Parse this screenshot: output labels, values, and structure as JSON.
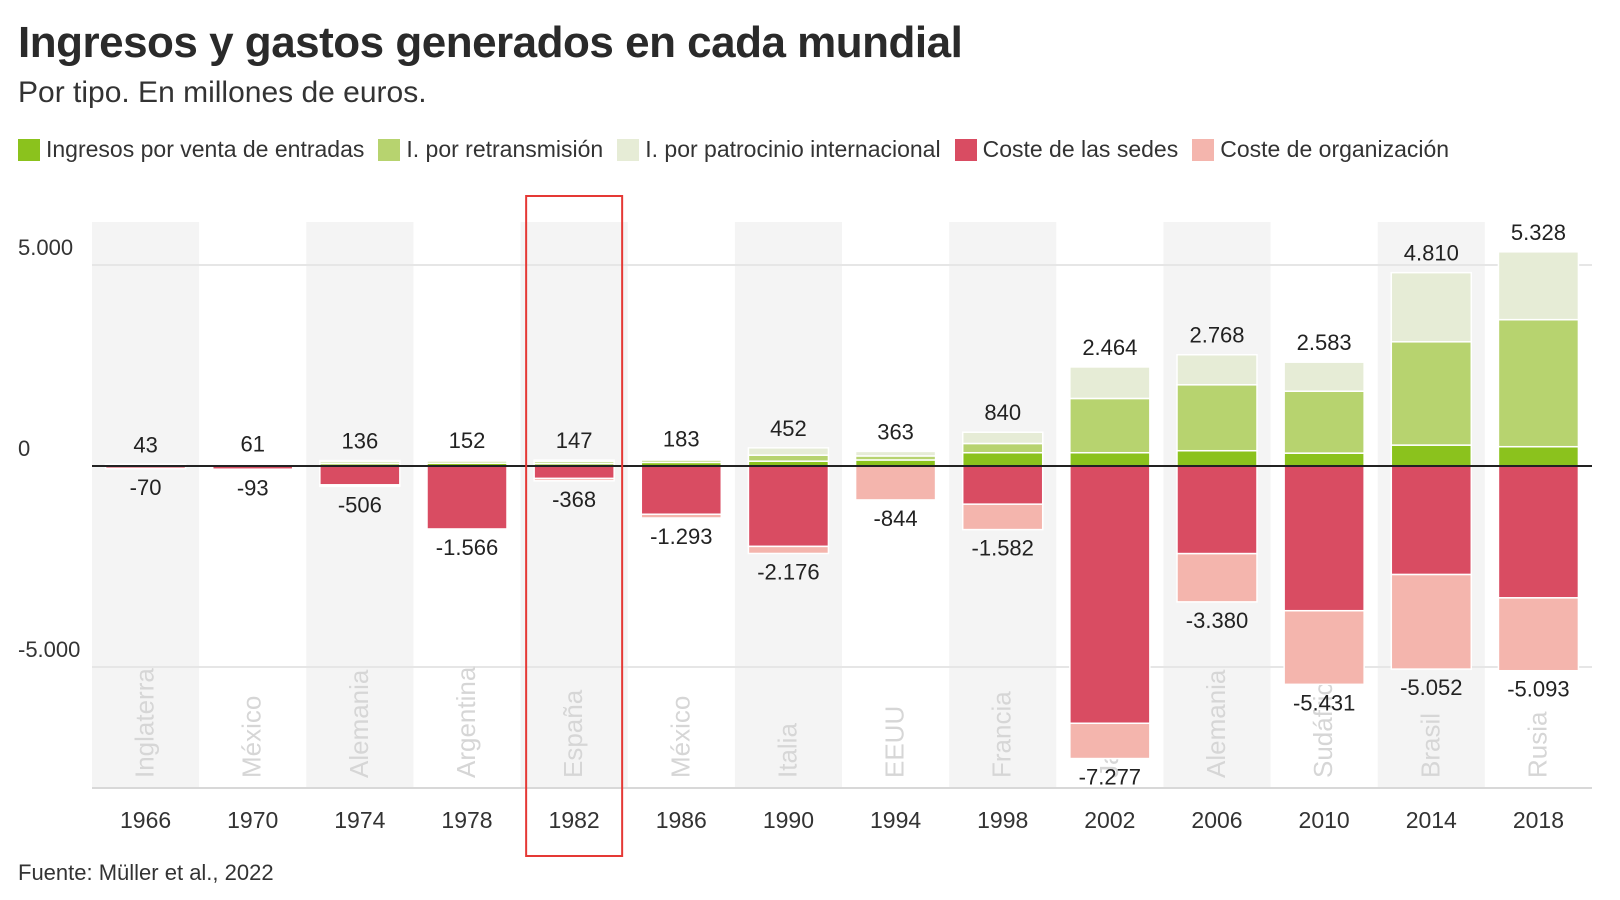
{
  "header": {
    "title": "Ingresos y gastos generados en cada mundial",
    "subtitle": "Por tipo. En millones de euros."
  },
  "footer": {
    "source": "Fuente: Müller et al., 2022"
  },
  "colors": {
    "ticket": "#8bc21d",
    "broadcast": "#b7d36f",
    "sponsorship": "#e6ecd6",
    "venues": "#d94c62",
    "organization": "#f4b5ad",
    "stripe": "#f4f4f4",
    "highlight": "#e53935"
  },
  "chart_data": {
    "type": "bar",
    "stacked": true,
    "categories": [
      "1966",
      "1970",
      "1974",
      "1978",
      "1982",
      "1986",
      "1990",
      "1994",
      "1998",
      "2002",
      "2006",
      "2010",
      "2014",
      "2018"
    ],
    "hosts": [
      "Inglaterra",
      "México",
      "Alemania",
      "Argentina",
      "España",
      "México",
      "Italia",
      "EEUU",
      "Francia",
      "Japón",
      "Alemania",
      "Sudáfrica",
      "Brasil",
      "Rusia"
    ],
    "series": [
      {
        "name": "Ingresos por venta de entradas",
        "key": "ticket",
        "values": [
          20,
          30,
          60,
          70,
          60,
          90,
          120,
          150,
          330,
          330,
          380,
          320,
          520,
          480
        ]
      },
      {
        "name": "I. por retransmisión",
        "key": "broadcast",
        "values": [
          15,
          20,
          50,
          55,
          55,
          60,
          150,
          100,
          230,
          1350,
          1640,
          1540,
          2570,
          3160
        ]
      },
      {
        "name": "I. por patrocinio internacional",
        "key": "sponsorship",
        "values": [
          8,
          11,
          26,
          27,
          32,
          33,
          182,
          113,
          280,
          784,
          748,
          723,
          1720,
          1688
        ]
      },
      {
        "name": "Coste de las sedes",
        "key": "venues",
        "values": [
          -60,
          -80,
          -470,
          -1566,
          -310,
          -1200,
          -2000,
          0,
          -950,
          -6400,
          -2180,
          -3600,
          -2700,
          -3280
        ]
      },
      {
        "name": "Coste de organización",
        "key": "organization",
        "values": [
          -10,
          -13,
          -36,
          0,
          -58,
          -93,
          -176,
          -844,
          -632,
          -877,
          -1200,
          -1831,
          -2352,
          -1813
        ]
      }
    ],
    "totals_positive": [
      43,
      61,
      136,
      152,
      147,
      183,
      452,
      363,
      840,
      2464,
      2768,
      2583,
      4810,
      5328
    ],
    "totals_negative": [
      -70,
      -93,
      -506,
      -1566,
      -368,
      -1293,
      -2176,
      -844,
      -1582,
      -7277,
      -3380,
      -5431,
      -5052,
      -5093
    ],
    "totals_positive_labels": [
      "43",
      "61",
      "136",
      "152",
      "147",
      "183",
      "452",
      "363",
      "840",
      "2.464",
      "2.768",
      "2.583",
      "4.810",
      "5.328"
    ],
    "totals_negative_labels": [
      "-70",
      "-93",
      "-506",
      "-1.566",
      "-368",
      "-1.293",
      "-2.176",
      "-844",
      "-1.582",
      "-7.277",
      "-3.380",
      "-5.431",
      "-5.052",
      "-5.093"
    ],
    "y_ticks": [
      5000,
      0,
      -5000
    ],
    "y_tick_labels": [
      "5.000",
      "0",
      "-5.000"
    ],
    "ylim": [
      -8000,
      6000
    ],
    "highlight_category": "1982",
    "grid": true,
    "legend_position": "top"
  }
}
